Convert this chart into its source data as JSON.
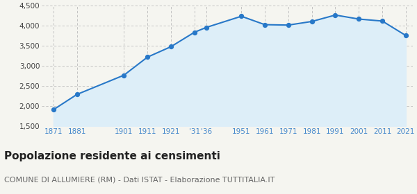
{
  "years": [
    1871,
    1881,
    1901,
    1911,
    1921,
    1931,
    1936,
    1951,
    1961,
    1971,
    1981,
    1991,
    2001,
    2011,
    2021
  ],
  "population": [
    1910,
    2290,
    2770,
    3220,
    3480,
    3840,
    3960,
    4240,
    4030,
    4020,
    4110,
    4270,
    4170,
    4120,
    3760
  ],
  "x_tick_labels": [
    "1871",
    "1881",
    "1901",
    "1911",
    "1921",
    "'31",
    "'36",
    "1951",
    "1961",
    "1971",
    "1981",
    "1991",
    "2001",
    "2011",
    "2021"
  ],
  "ylim": [
    1500,
    4500
  ],
  "yticks": [
    1500,
    2000,
    2500,
    3000,
    3500,
    4000,
    4500
  ],
  "line_color": "#2878c8",
  "fill_color": "#ddeef8",
  "marker_color": "#2878c8",
  "grid_color": "#bbbbbb",
  "bg_color": "#f5f5f0",
  "tick_label_color": "#4488cc",
  "title": "Popolazione residente ai censimenti",
  "subtitle": "COMUNE DI ALLUMIERE (RM) - Dati ISTAT - Elaborazione TUTTITALIA.IT",
  "title_fontsize": 11,
  "subtitle_fontsize": 8,
  "title_color": "#222222",
  "subtitle_color": "#666666"
}
